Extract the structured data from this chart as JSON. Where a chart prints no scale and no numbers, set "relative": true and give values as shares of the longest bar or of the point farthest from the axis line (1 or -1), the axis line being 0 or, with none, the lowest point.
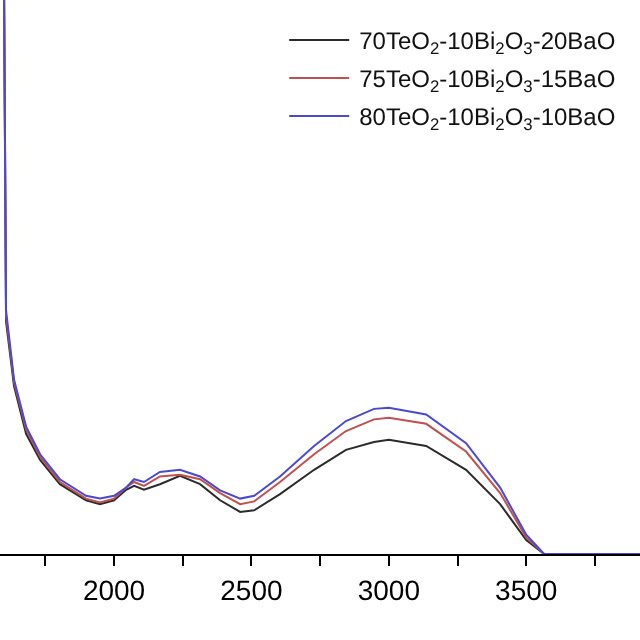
{
  "chart_data": {
    "type": "line",
    "relative": true,
    "legend": "top right",
    "grid": false,
    "marker": "none",
    "line_style": "solid",
    "x": [
      1600,
      1607,
      1636,
      1680,
      1731,
      1803,
      1898,
      1949,
      2000,
      2044,
      2073,
      2109,
      2167,
      2240,
      2313,
      2386,
      2459,
      2510,
      2604,
      2728,
      2844,
      2946,
      3000,
      3136,
      3281,
      3405,
      3500,
      3565,
      3914
    ],
    "xlim": [
      1585,
      3914
    ],
    "xticks": [
      {
        "value": 1750,
        "label": null
      },
      2000,
      {
        "value": 2250,
        "label": null
      },
      2500,
      {
        "value": 2750,
        "label": null
      },
      3000,
      {
        "value": 3250,
        "label": null
      },
      3500,
      {
        "value": 3750,
        "label": null
      }
    ],
    "series": [
      {
        "name": "70TeO$_{2}$-10Bi$_{2}$O$_{3}$-20BaO",
        "color": "#2b2b2b",
        "values": [
          1.0,
          0.42,
          0.303,
          0.217,
          0.17,
          0.126,
          0.097,
          0.09,
          0.097,
          0.116,
          0.123,
          0.116,
          0.126,
          0.141,
          0.126,
          0.097,
          0.076,
          0.079,
          0.108,
          0.152,
          0.188,
          0.202,
          0.206,
          0.195,
          0.152,
          0.09,
          0.025,
          0,
          0
        ]
      },
      {
        "name": "75TeO$_{2}$-10Bi$_{2}$O$_{3}$-15BaO",
        "color": "#c0504d",
        "values": [
          1.0,
          0.43,
          0.31,
          0.225,
          0.175,
          0.13,
          0.1,
          0.093,
          0.1,
          0.12,
          0.13,
          0.123,
          0.14,
          0.143,
          0.135,
          0.11,
          0.09,
          0.095,
          0.13,
          0.18,
          0.222,
          0.243,
          0.246,
          0.235,
          0.185,
          0.11,
          0.03,
          0,
          0
        ]
      },
      {
        "name": "80TeO$_{2}$-10Bi$_{2}$O$_{3}$-10BaO",
        "color": "#4a4ad0",
        "values": [
          1.0,
          0.44,
          0.315,
          0.23,
          0.18,
          0.135,
          0.105,
          0.1,
          0.105,
          0.12,
          0.135,
          0.13,
          0.148,
          0.152,
          0.14,
          0.115,
          0.1,
          0.105,
          0.14,
          0.195,
          0.24,
          0.262,
          0.264,
          0.252,
          0.2,
          0.12,
          0.035,
          0,
          0
        ]
      }
    ]
  }
}
